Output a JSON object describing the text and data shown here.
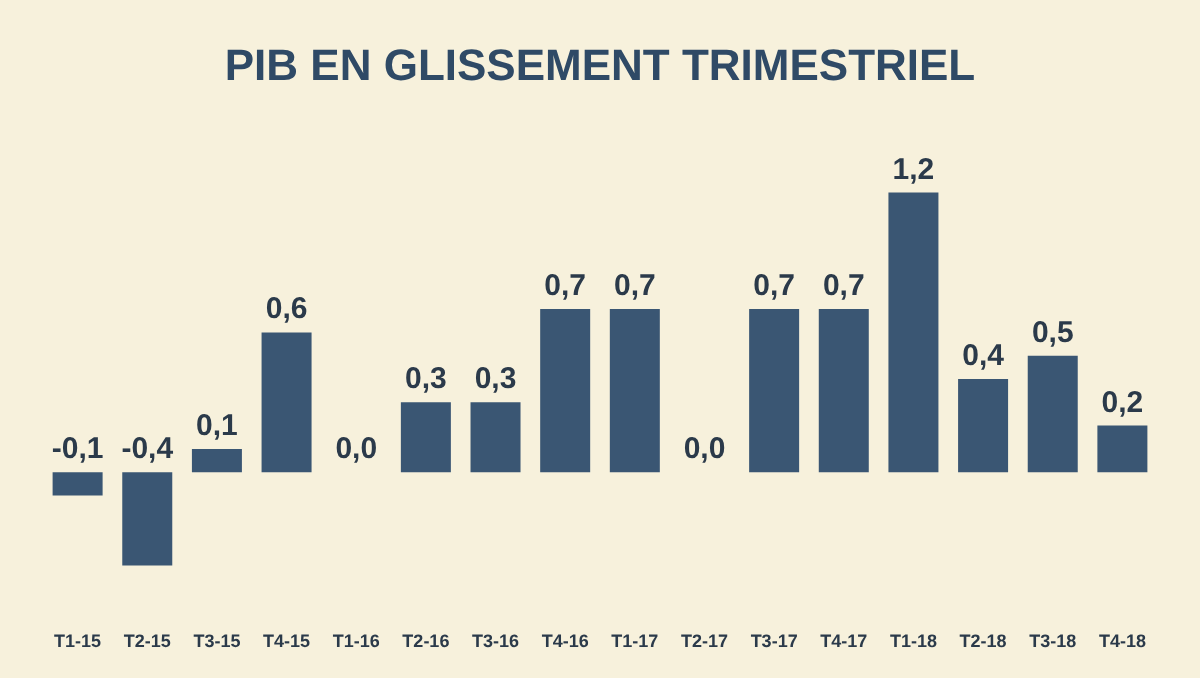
{
  "chart_data": {
    "type": "bar",
    "title": "PIB EN GLISSEMENT TRIMESTRIEL",
    "categories": [
      "T1-15",
      "T2-15",
      "T3-15",
      "T4-15",
      "T1-16",
      "T2-16",
      "T3-16",
      "T4-16",
      "T1-17",
      "T2-17",
      "T3-17",
      "T4-17",
      "T1-18",
      "T2-18",
      "T3-18",
      "T4-18"
    ],
    "values": [
      -0.1,
      -0.4,
      0.1,
      0.6,
      0.0,
      0.3,
      0.3,
      0.7,
      0.7,
      0.0,
      0.7,
      0.7,
      1.2,
      0.4,
      0.5,
      0.2
    ],
    "value_labels": [
      "-0,1",
      "-0,4",
      "0,1",
      "0,6",
      "0,0",
      "0,3",
      "0,3",
      "0,7",
      "0,7",
      "0,0",
      "0,7",
      "0,7",
      "1,2",
      "0,4",
      "0,5",
      "0,2"
    ],
    "color": "#3a5673",
    "tick_labels": "x",
    "grid": false
  }
}
